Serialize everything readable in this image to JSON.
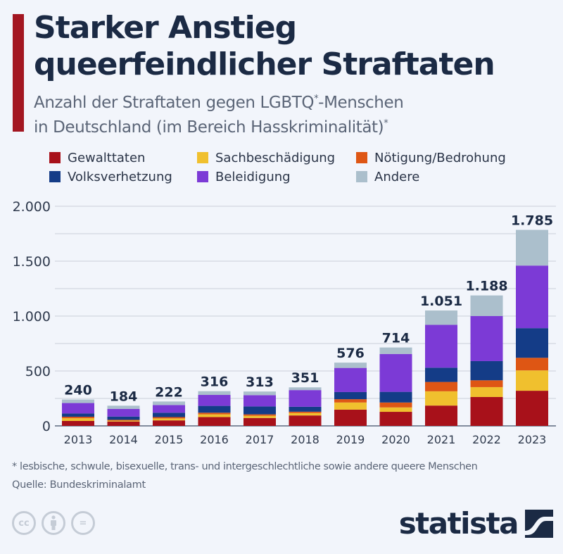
{
  "header": {
    "title_line1": "Starker Anstieg",
    "title_line2": "queerfeindlicher Straftaten",
    "subtitle_line1": "Anzahl der Straftaten gegen LGBTQ",
    "subtitle_sup1": "*",
    "subtitle_line1_end": "-Menschen",
    "subtitle_line2": "in Deutschland (im Bereich Hasskriminalität)",
    "subtitle_sup2": "*"
  },
  "chart_data": {
    "type": "bar",
    "stacked": true,
    "title": "Starker Anstieg queerfeindlicher Straftaten",
    "subtitle": "Anzahl der Straftaten gegen LGBTQ*-Menschen in Deutschland (im Bereich Hasskriminalität)*",
    "xlabel": "",
    "ylabel": "",
    "ylim": [
      0,
      2000
    ],
    "yticks": [
      0,
      500,
      1000,
      1500,
      2000
    ],
    "ytick_labels": [
      "0",
      "500",
      "1.000",
      "1.500",
      "2.000"
    ],
    "grid": true,
    "legend_position": "top",
    "categories": [
      "2013",
      "2014",
      "2015",
      "2016",
      "2017",
      "2018",
      "2019",
      "2020",
      "2021",
      "2022",
      "2023"
    ],
    "totals": [
      240,
      184,
      222,
      316,
      313,
      351,
      576,
      714,
      1051,
      1188,
      1785
    ],
    "total_labels": [
      "240",
      "184",
      "222",
      "316",
      "313",
      "351",
      "576",
      "714",
      "1.051",
      "1.188",
      "1.785"
    ],
    "series": [
      {
        "name": "Gewalttaten",
        "color": "#a8111a",
        "values": [
          45,
          40,
          50,
          80,
          72,
          95,
          148,
          128,
          185,
          263,
          320
        ]
      },
      {
        "name": "Sachbeschädigung",
        "color": "#f0c02e",
        "values": [
          25,
          8,
          18,
          25,
          20,
          22,
          65,
          40,
          130,
          90,
          185
        ]
      },
      {
        "name": "Nötigung/Bedrohung",
        "color": "#de5614",
        "values": [
          13,
          7,
          12,
          15,
          13,
          12,
          30,
          45,
          85,
          62,
          115
        ]
      },
      {
        "name": "Volksverhetzung",
        "color": "#143c87",
        "values": [
          30,
          30,
          40,
          62,
          72,
          45,
          65,
          97,
          130,
          175,
          270
        ]
      },
      {
        "name": "Beleidigung",
        "color": "#7c3ad6",
        "values": [
          95,
          70,
          70,
          100,
          103,
          152,
          220,
          345,
          390,
          410,
          570
        ]
      },
      {
        "name": "Andere",
        "color": "#abbfcc",
        "values": [
          32,
          29,
          32,
          34,
          33,
          25,
          48,
          59,
          131,
          188,
          325
        ]
      }
    ]
  },
  "legend": {
    "items": [
      {
        "label": "Gewalttaten",
        "color": "#a8111a"
      },
      {
        "label": "Sachbeschädigung",
        "color": "#f0c02e"
      },
      {
        "label": "Nötigung/Bedrohung",
        "color": "#de5614"
      },
      {
        "label": "Volksverhetzung",
        "color": "#143c87"
      },
      {
        "label": "Beleidigung",
        "color": "#7c3ad6"
      },
      {
        "label": "Andere",
        "color": "#abbfcc"
      }
    ]
  },
  "footer": {
    "footnote": "* lesbische, schwule, bisexuelle, trans- und intergeschlechtliche sowie andere queere Menschen",
    "source": "Quelle: Bundeskriminalamt",
    "cc_icons": [
      "cc",
      "by",
      "nd"
    ],
    "cc_labels": [
      "cc",
      "",
      "="
    ],
    "brand": "statista"
  },
  "colors": {
    "accent": "#a31621",
    "title": "#1b2a44",
    "background": "#f2f5fb"
  }
}
